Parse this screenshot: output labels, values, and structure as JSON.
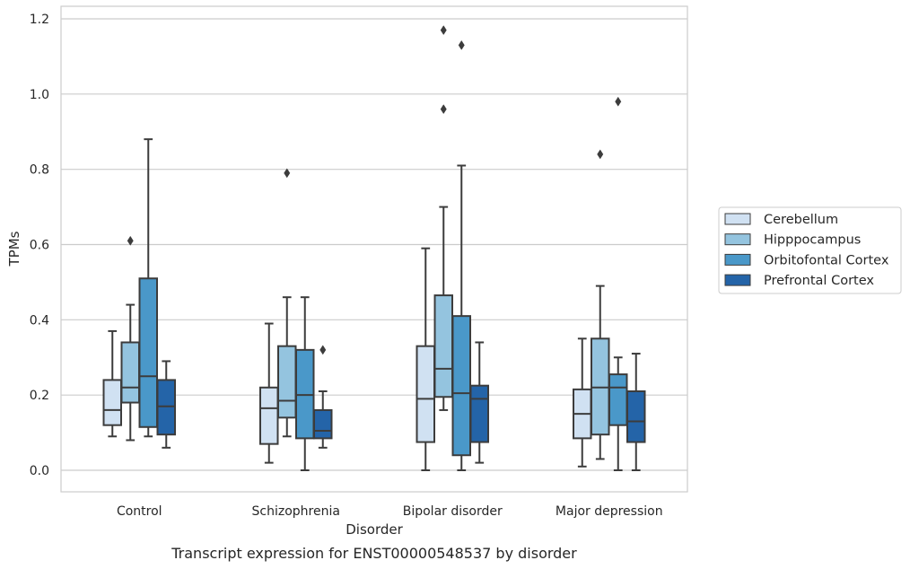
{
  "chart_data": {
    "type": "box",
    "xlabel": "Disorder",
    "ylabel": "TPMs",
    "caption": "Transcript expression for ENST00000548537 by disorder",
    "ylim": [
      -0.055,
      1.235
    ],
    "yticks": [
      "0.0",
      "0.2",
      "0.4",
      "0.6",
      "0.8",
      "1.0",
      "1.2"
    ],
    "grid": "y",
    "legend_position": "right",
    "categories": [
      "Control",
      "Schizophrenia",
      "Bipolar disorder",
      "Major depression"
    ],
    "series": [
      {
        "name": "Cerebellum",
        "color": "#d0e1f2",
        "boxes": [
          {
            "whislo": 0.09,
            "q1": 0.12,
            "med": 0.16,
            "q3": 0.24,
            "whishi": 0.37,
            "fliers": []
          },
          {
            "whislo": 0.02,
            "q1": 0.07,
            "med": 0.165,
            "q3": 0.22,
            "whishi": 0.39,
            "fliers": []
          },
          {
            "whislo": 0.0,
            "q1": 0.075,
            "med": 0.19,
            "q3": 0.33,
            "whishi": 0.59,
            "fliers": []
          },
          {
            "whislo": 0.01,
            "q1": 0.085,
            "med": 0.15,
            "q3": 0.215,
            "whishi": 0.35,
            "fliers": []
          }
        ]
      },
      {
        "name": "Hipppocampus",
        "color": "#94c4df",
        "boxes": [
          {
            "whislo": 0.08,
            "q1": 0.18,
            "med": 0.22,
            "q3": 0.34,
            "whishi": 0.44,
            "fliers": [
              0.61
            ]
          },
          {
            "whislo": 0.09,
            "q1": 0.14,
            "med": 0.185,
            "q3": 0.33,
            "whishi": 0.46,
            "fliers": [
              0.79
            ]
          },
          {
            "whislo": 0.16,
            "q1": 0.195,
            "med": 0.27,
            "q3": 0.465,
            "whishi": 0.7,
            "fliers": [
              0.96,
              1.17
            ]
          },
          {
            "whislo": 0.03,
            "q1": 0.095,
            "med": 0.22,
            "q3": 0.35,
            "whishi": 0.49,
            "fliers": [
              0.84
            ]
          }
        ]
      },
      {
        "name": "Orbitofontal Cortex",
        "color": "#4a98c9",
        "boxes": [
          {
            "whislo": 0.09,
            "q1": 0.115,
            "med": 0.25,
            "q3": 0.51,
            "whishi": 0.88,
            "fliers": []
          },
          {
            "whislo": 0.0,
            "q1": 0.085,
            "med": 0.2,
            "q3": 0.32,
            "whishi": 0.46,
            "fliers": []
          },
          {
            "whislo": 0.0,
            "q1": 0.04,
            "med": 0.205,
            "q3": 0.41,
            "whishi": 0.81,
            "fliers": [
              1.13
            ]
          },
          {
            "whislo": 0.0,
            "q1": 0.12,
            "med": 0.22,
            "q3": 0.255,
            "whishi": 0.3,
            "fliers": [
              0.98
            ]
          }
        ]
      },
      {
        "name": "Prefrontal Cortex",
        "color": "#2464a8",
        "boxes": [
          {
            "whislo": 0.06,
            "q1": 0.095,
            "med": 0.17,
            "q3": 0.24,
            "whishi": 0.29,
            "fliers": []
          },
          {
            "whislo": 0.06,
            "q1": 0.085,
            "med": 0.105,
            "q3": 0.16,
            "whishi": 0.21,
            "fliers": [
              0.32
            ]
          },
          {
            "whislo": 0.02,
            "q1": 0.075,
            "med": 0.19,
            "q3": 0.225,
            "whishi": 0.34,
            "fliers": []
          },
          {
            "whislo": 0.0,
            "q1": 0.075,
            "med": 0.13,
            "q3": 0.21,
            "whishi": 0.31,
            "fliers": []
          }
        ]
      }
    ]
  }
}
